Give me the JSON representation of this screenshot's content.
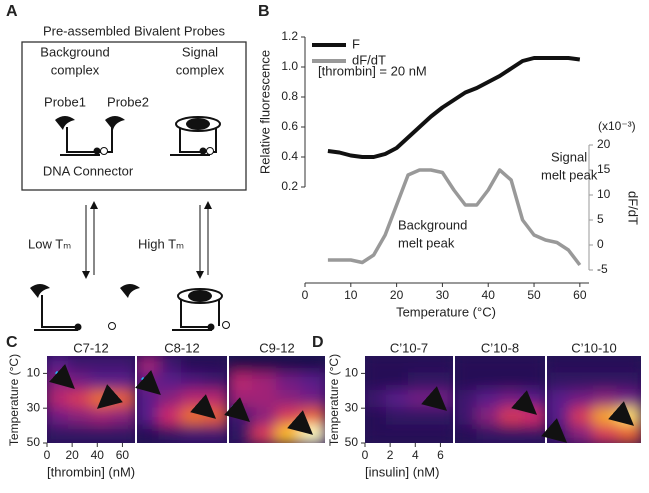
{
  "panel_labels": [
    "A",
    "B",
    "C",
    "D"
  ],
  "diagram": {
    "title": "Pre-assembled Bivalent Probes",
    "background_lines": [
      "Background",
      "complex"
    ],
    "signal_lines": [
      "Signal",
      "complex"
    ],
    "probe1": "Probe1",
    "probe2": "Probe2",
    "connector": "DNA Connector",
    "low_tm": "Low Tₘ",
    "high_tm": "High Tₘ"
  },
  "chart_data": [
    {
      "type": "line",
      "xlabel": "Temperature (°C)",
      "ylabel": "Relative fluorescence",
      "y2label": "dF/dT",
      "y2unit": "(x10⁻³)",
      "x": [
        5,
        7.5,
        10,
        12.5,
        15,
        17.5,
        20,
        22.5,
        25,
        27.5,
        30,
        32.5,
        35,
        37.5,
        40,
        42.5,
        45,
        47.5,
        50,
        52.5,
        55,
        57.5,
        60
      ],
      "series": [
        {
          "name": "F",
          "color": "#111111",
          "values": [
            0.44,
            0.43,
            0.41,
            0.4,
            0.4,
            0.42,
            0.46,
            0.53,
            0.6,
            0.67,
            0.73,
            0.78,
            0.83,
            0.86,
            0.9,
            0.94,
            0.99,
            1.04,
            1.06,
            1.06,
            1.06,
            1.06,
            1.05
          ]
        },
        {
          "name": "dF/dT",
          "color": "#999999",
          "axis": "y2",
          "values": [
            -3,
            -3,
            -3,
            -3.5,
            -2,
            2,
            8,
            14,
            15,
            15,
            14.5,
            11,
            8,
            8,
            11,
            15,
            13,
            5,
            2,
            1,
            0.5,
            -1,
            -4
          ]
        }
      ],
      "xlim": [
        0,
        62
      ],
      "xticks": [
        0,
        10,
        20,
        30,
        40,
        50,
        60
      ],
      "ylim": [
        0.2,
        1.2
      ],
      "yticks": [
        {
          "value": 0.2,
          "label": "0.2"
        },
        {
          "value": 0.4,
          "label": "0.4"
        },
        {
          "value": 0.6,
          "label": "0.6"
        },
        {
          "value": 0.8,
          "label": "0.8"
        },
        {
          "value": 1.0,
          "label": "1.0"
        },
        {
          "value": 1.2,
          "label": "1.2"
        }
      ],
      "y2lim": [
        -5,
        20
      ],
      "y2ticks": [
        -5,
        0,
        5,
        10,
        15,
        20
      ],
      "annotations": [
        {
          "lines": [
            "[thrombin] = 20 nM"
          ]
        },
        {
          "lines": [
            "Background",
            "melt peak"
          ]
        },
        {
          "lines": [
            "Signal",
            "melt peak"
          ]
        }
      ],
      "legend": "top-left"
    },
    {
      "type": "heatmap",
      "ylabel": "Temperature (°C)",
      "xlabel": "[thrombin] (nM)",
      "ylim": [
        0,
        50
      ],
      "yticks": [
        10,
        30,
        50
      ],
      "xlim": [
        0,
        70
      ],
      "xticks": [
        0,
        20,
        40,
        60
      ],
      "x": [
        8.75,
        26.25,
        43.75,
        61.25
      ],
      "y": [
        5,
        15,
        25,
        35,
        45
      ],
      "panels": [
        {
          "title": "C7-12",
          "values": [
            [
              0.3,
              0.2,
              0.2,
              0.2
            ],
            [
              0.4,
              0.35,
              0.3,
              0.3
            ],
            [
              0.5,
              0.6,
              0.75,
              0.7
            ],
            [
              0.35,
              0.4,
              0.45,
              0.4
            ],
            [
              0.15,
              0.15,
              0.15,
              0.15
            ]
          ]
        },
        {
          "title": "C8-12",
          "values": [
            [
              0.45,
              0.2,
              0.1,
              0.1
            ],
            [
              0.35,
              0.3,
              0.25,
              0.2
            ],
            [
              0.3,
              0.4,
              0.5,
              0.5
            ],
            [
              0.3,
              0.55,
              0.75,
              0.7
            ],
            [
              0.1,
              0.15,
              0.2,
              0.2
            ]
          ]
        },
        {
          "title": "C9-12",
          "values": [
            [
              0.05,
              0.05,
              0.05,
              0.05
            ],
            [
              0.5,
              0.45,
              0.35,
              0.3
            ],
            [
              0.45,
              0.45,
              0.4,
              0.35
            ],
            [
              0.2,
              0.4,
              0.6,
              0.7
            ],
            [
              0.15,
              0.6,
              0.9,
              1.0
            ]
          ]
        }
      ]
    },
    {
      "type": "heatmap",
      "ylabel": "Temperature (°C)",
      "xlabel": "[insulin] (nM)",
      "ylim": [
        0,
        50
      ],
      "yticks": [
        10,
        30,
        50
      ],
      "xlim": [
        0,
        7
      ],
      "xticks": [
        0,
        2,
        4,
        6
      ],
      "x": [
        0.875,
        2.625,
        4.375,
        6.125
      ],
      "y": [
        5,
        15,
        25,
        35,
        45
      ],
      "panels": [
        {
          "title": "C’10-7",
          "values": [
            [
              0.1,
              0.1,
              0.1,
              0.1
            ],
            [
              0.1,
              0.1,
              0.15,
              0.15
            ],
            [
              0.2,
              0.3,
              0.35,
              0.35
            ],
            [
              0.1,
              0.15,
              0.15,
              0.15
            ],
            [
              0.1,
              0.1,
              0.1,
              0.1
            ]
          ]
        },
        {
          "title": "C’10-8",
          "values": [
            [
              0.1,
              0.1,
              0.1,
              0.1
            ],
            [
              0.1,
              0.1,
              0.1,
              0.1
            ],
            [
              0.2,
              0.3,
              0.35,
              0.3
            ],
            [
              0.2,
              0.4,
              0.6,
              0.55
            ],
            [
              0.1,
              0.15,
              0.15,
              0.15
            ]
          ]
        },
        {
          "title": "C’10-10",
          "values": [
            [
              0.1,
              0.1,
              0.1,
              0.1
            ],
            [
              0.15,
              0.15,
              0.15,
              0.15
            ],
            [
              0.3,
              0.35,
              0.4,
              0.35
            ],
            [
              0.3,
              0.6,
              0.85,
              0.95
            ],
            [
              0.2,
              0.4,
              0.6,
              0.7
            ]
          ]
        }
      ]
    }
  ]
}
